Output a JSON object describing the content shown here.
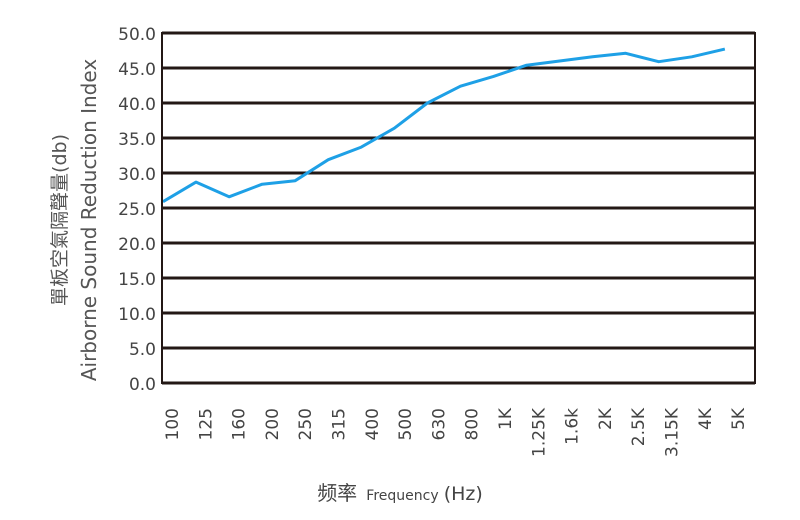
{
  "chart_data": {
    "type": "line",
    "title": "",
    "xlabel_cn": "频率",
    "xlabel_en": "Frequency",
    "xlabel_unit": "(Hz)",
    "ylabel_cn": "單板空氣隔聲量(db)",
    "ylabel_en": "Airborne Sound Reduction Index",
    "ylim": [
      0,
      50
    ],
    "yticks": [
      "0.0",
      "5.0",
      "10.0",
      "15.0",
      "20.0",
      "25.0",
      "30.0",
      "35.0",
      "40.0",
      "45.0",
      "50.0"
    ],
    "categories": [
      "100",
      "125",
      "160",
      "200",
      "250",
      "315",
      "400",
      "500",
      "630",
      "800",
      "1K",
      "1.25K",
      "1.6k",
      "2K",
      "2.5K",
      "3.15K",
      "4K",
      "5K"
    ],
    "series": [
      {
        "name": "Airborne Sound Reduction Index",
        "color": "#1ea0e6",
        "values": [
          25.9,
          28.7,
          26.6,
          28.4,
          28.9,
          31.9,
          33.7,
          36.4,
          40.0,
          42.4,
          43.8,
          45.4,
          46.0,
          46.6,
          47.1,
          45.9,
          46.6,
          47.7
        ]
      }
    ],
    "grid": true
  }
}
